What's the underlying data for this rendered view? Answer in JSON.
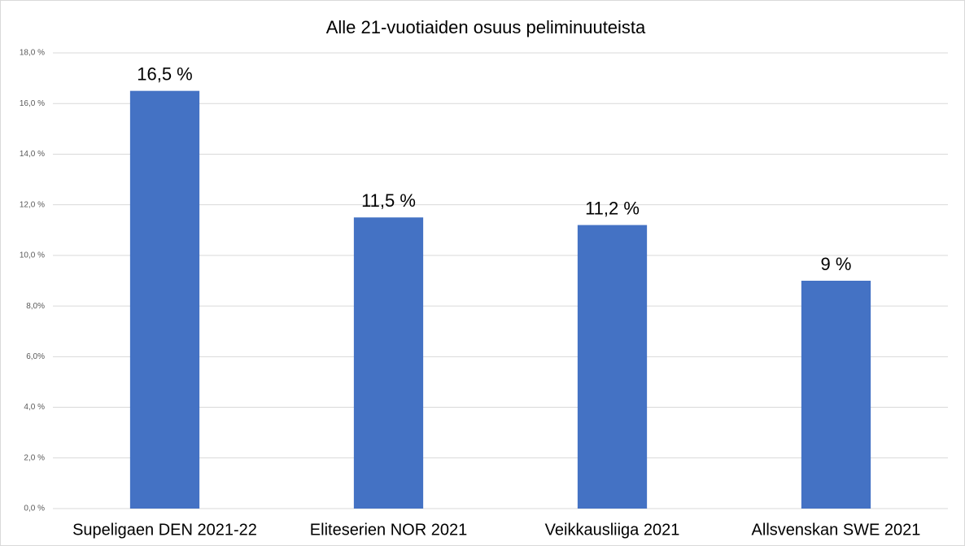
{
  "chart_data": {
    "type": "bar",
    "title": "Alle 21-vuotiaiden osuus peliminuuteista",
    "categories": [
      "Supeligaen DEN 2021-22",
      "Eliteserien NOR 2021",
      "Veikkausliiga 2021",
      "Allsvenskan SWE 2021"
    ],
    "values": [
      16.5,
      11.5,
      11.2,
      9
    ],
    "value_labels": [
      "16,5 %",
      "11,5 %",
      "11,2 %",
      "9 %"
    ],
    "color": "#4472c4",
    "ylim": [
      0,
      18
    ],
    "yticks": [
      {
        "value": 0,
        "label": "0,0 %"
      },
      {
        "value": 2,
        "label": "2,0 %"
      },
      {
        "value": 4,
        "label": "4,0 %"
      },
      {
        "value": 6,
        "label": "6,0%"
      },
      {
        "value": 8,
        "label": "8,0%"
      },
      {
        "value": 10,
        "label": "10,0 %"
      },
      {
        "value": 12,
        "label": "12,0 %"
      },
      {
        "value": 14,
        "label": "14,0 %"
      },
      {
        "value": 16,
        "label": "16,0 %"
      },
      {
        "value": 18,
        "label": "18,0 %"
      }
    ],
    "grid": true
  }
}
